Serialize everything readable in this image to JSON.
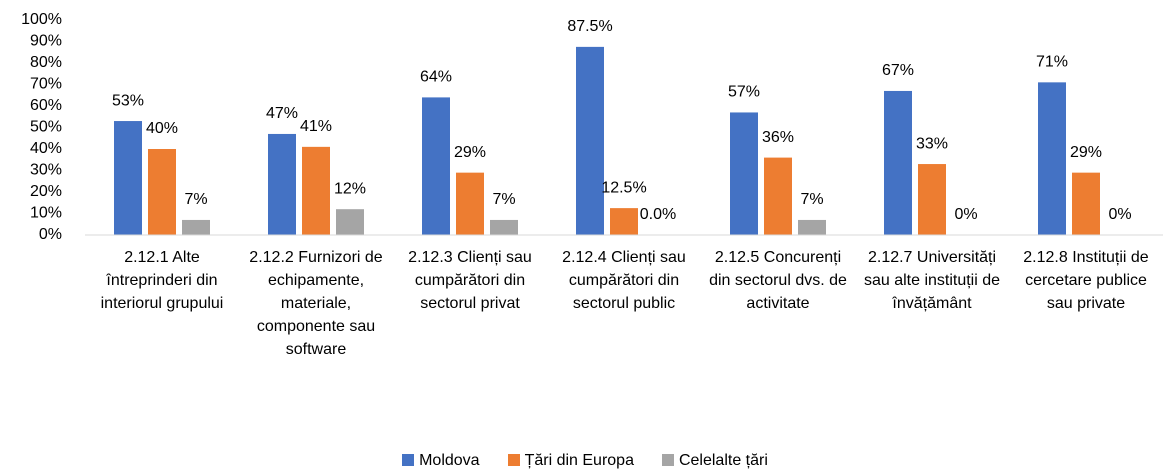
{
  "chart_data": {
    "type": "bar",
    "categories": [
      "2.12.1 Alte întreprinderi din interiorul grupului",
      "2.12.2 Furnizori de echipamente, materiale, componente sau software",
      "2.12.3 Clienți sau cumpărători din sectorul privat",
      "2.12.4 Clienți sau cumpărători din sectorul public",
      "2.12.5 Concurenți din sectorul dvs. de activitate",
      "2.12.7 Universități sau alte instituții de învățământ",
      "2.12.8 Instituții de cercetare publice sau private"
    ],
    "series": [
      {
        "name": "Moldova",
        "color": "#4472c4",
        "values": [
          53,
          47,
          64,
          87.5,
          57,
          67,
          71
        ],
        "value_labels": [
          "53%",
          "47%",
          "64%",
          "87.5%",
          "57%",
          "67%",
          "71%"
        ]
      },
      {
        "name": "Țări din Europa",
        "color": "#ed7d31",
        "values": [
          40,
          41,
          29,
          12.5,
          36,
          33,
          29
        ],
        "value_labels": [
          "40%",
          "41%",
          "29%",
          "12.5%",
          "36%",
          "33%",
          "29%"
        ]
      },
      {
        "name": "Celelalte țări",
        "color": "#a5a5a5",
        "values": [
          7,
          12,
          7,
          0.0,
          7,
          0,
          0
        ],
        "value_labels": [
          "7%",
          "12%",
          "7%",
          "0.0%",
          "7%",
          "0%",
          "0%"
        ]
      }
    ],
    "ylim": [
      0,
      100
    ],
    "yticks": [
      {
        "value": 0,
        "label": "0%"
      },
      {
        "value": 10,
        "label": "10%"
      },
      {
        "value": 20,
        "label": "20%"
      },
      {
        "value": 30,
        "label": "30%"
      },
      {
        "value": 40,
        "label": "40%"
      },
      {
        "value": 50,
        "label": "50%"
      },
      {
        "value": 60,
        "label": "60%"
      },
      {
        "value": 70,
        "label": "70%"
      },
      {
        "value": 80,
        "label": "80%"
      },
      {
        "value": 90,
        "label": "90%"
      },
      {
        "value": 100,
        "label": "100%"
      }
    ],
    "grid": false,
    "legend": "bottom"
  }
}
